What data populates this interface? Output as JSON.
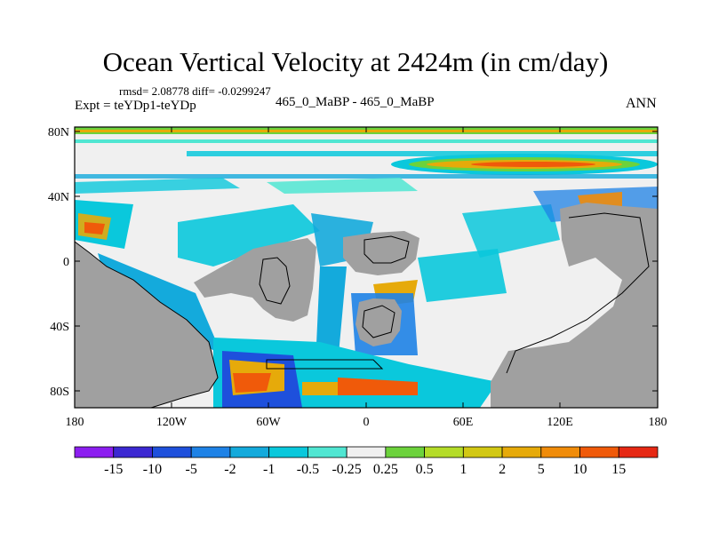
{
  "title": "Ocean Vertical Velocity at 2424m (in cm/day)",
  "stats": "rmsd= 2.08778 diff= -0.0299247",
  "expt": "Expt = teYDp1-teYDp",
  "cases": "465_0_MaBP - 465_0_MaBP",
  "season": "ANN",
  "axes": {
    "x_ticks": [
      "180",
      "120W",
      "60W",
      "0",
      "60E",
      "120E",
      "180"
    ],
    "y_ticks": [
      "80N",
      "40N",
      "0",
      "40S",
      "80S"
    ]
  },
  "colorbar": {
    "colors": [
      "#8c1ef0",
      "#3c28d2",
      "#1e50dc",
      "#1e82e6",
      "#14aadc",
      "#0ac8dc",
      "#50e6d2",
      "#f0f0f0",
      "#6cd23c",
      "#b4dc28",
      "#d2c814",
      "#e6aa0a",
      "#f08c0a",
      "#f05a0a",
      "#e62814"
    ],
    "labels": [
      "-15",
      "-10",
      "-5",
      "-2",
      "-1",
      "-0.5",
      "-0.25",
      "0.25",
      "0.5",
      "1",
      "2",
      "5",
      "10",
      "15"
    ]
  },
  "colors": {
    "land": "#a0a0a0",
    "no_change": "#f0f0f0"
  }
}
